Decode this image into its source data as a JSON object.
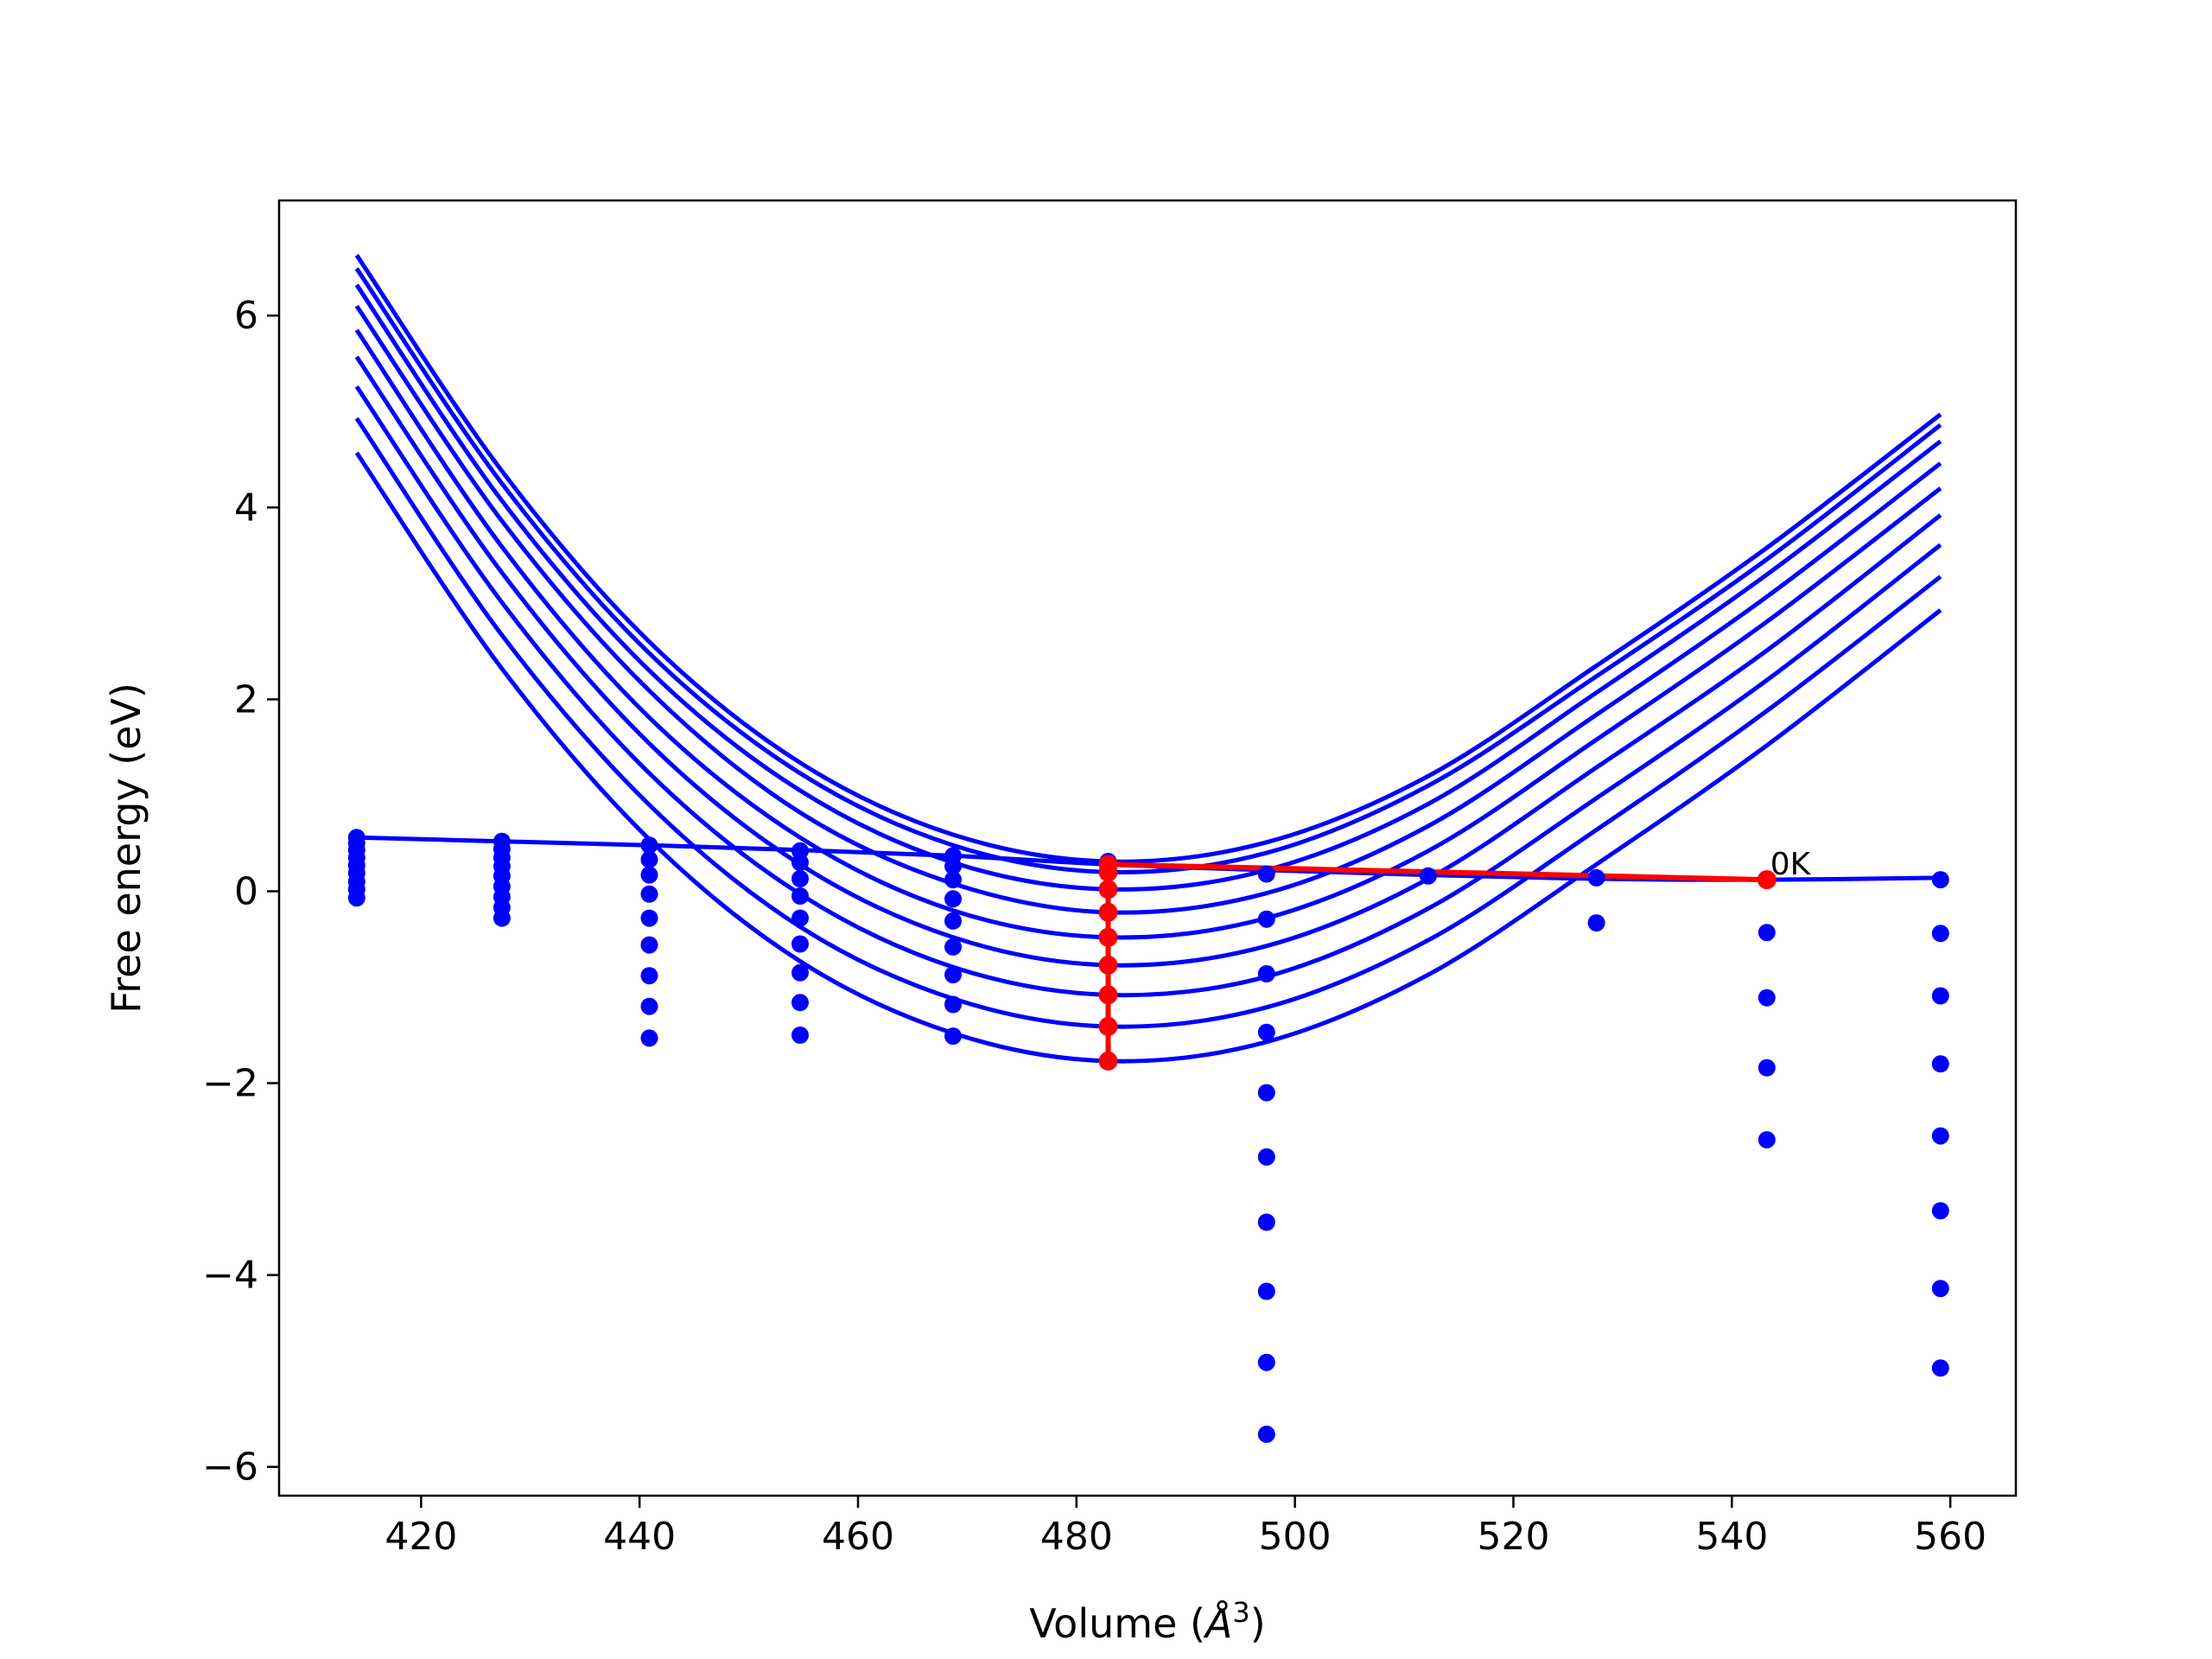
{
  "chart_data": {
    "type": "scatter",
    "xlabel": "Volume (",
    "xlabel_symbol": "Å",
    "xlabel_exponent": "3",
    "xlabel_close": ")",
    "ylabel": "Free energy (eV)",
    "xlim": [
      407,
      566
    ],
    "ylim": [
      -6.3,
      7.2
    ],
    "xticks": [
      420,
      440,
      460,
      480,
      500,
      520,
      540,
      560
    ],
    "xtick_labels": [
      "420",
      "440",
      "460",
      "480",
      "500",
      "520",
      "540",
      "560"
    ],
    "yticks": [
      -6,
      -4,
      -2,
      0,
      2,
      4,
      6
    ],
    "ytick_labels": [
      "−6",
      "−4",
      "−2",
      "0",
      "2",
      "4",
      "6"
    ],
    "grid": false,
    "annotation": {
      "text": "0K",
      "x": 543.2,
      "y": 0.12
    },
    "colors": {
      "curves": "#0000ff",
      "points": "#0000ff",
      "minimum_path": "#ff0000",
      "axes": "#000000"
    },
    "volumes": [
      414.1,
      427.4,
      440.9,
      454.7,
      468.7,
      482.9,
      497.4,
      512.2,
      527.6,
      543.2,
      559.1
    ],
    "point_columns": [
      {
        "x": 414.1,
        "y": [
          0.56,
          0.5,
          0.43,
          0.35,
          0.27,
          0.19,
          0.1,
          0.02,
          -0.07
        ]
      },
      {
        "x": 427.4,
        "y": [
          0.52,
          0.44,
          0.35,
          0.26,
          0.16,
          0.05,
          -0.06,
          -0.17,
          -0.28
        ]
      },
      {
        "x": 440.9,
        "y": [
          0.48,
          0.33,
          0.17,
          -0.03,
          -0.28,
          -0.56,
          -0.88,
          -1.2,
          -1.53
        ]
      },
      {
        "x": 454.7,
        "y": [
          0.42,
          0.3,
          0.13,
          -0.05,
          -0.28,
          -0.55,
          -0.85,
          -1.16,
          -1.5
        ]
      },
      {
        "x": 468.7,
        "y": [
          0.37,
          0.26,
          0.12,
          -0.08,
          -0.31,
          -0.58,
          -0.87,
          -1.18,
          -1.51
        ]
      },
      {
        "x": 482.9,
        "y": [
          0.31,
          0.21,
          0.03,
          -0.21,
          -0.48,
          -0.76,
          -1.07,
          -1.4,
          -1.76
        ]
      },
      {
        "x": 497.4,
        "y": [
          0.18,
          -0.29,
          -0.86,
          -1.47,
          -2.1,
          -2.77,
          -3.45,
          -4.17,
          -4.91,
          -5.66
        ]
      },
      {
        "x": 512.2,
        "y": [
          0.16
        ]
      },
      {
        "x": 527.6,
        "y": [
          0.14,
          -0.33
        ]
      },
      {
        "x": 543.2,
        "y": [
          0.12,
          -0.43,
          -1.11,
          -1.84,
          -2.59
        ]
      },
      {
        "x": 559.1,
        "y": [
          0.12,
          -0.44,
          -1.09,
          -1.8,
          -2.55,
          -3.33,
          -4.14,
          -4.97
        ]
      }
    ],
    "series": [
      {
        "x": [
          414.1,
          427.4,
          440.9,
          454.7,
          468.7,
          482.9,
          497.4,
          512.2,
          527.6,
          543.2,
          559.1
        ],
        "y": [
          0.56,
          0.52,
          0.48,
          0.43,
          0.37,
          0.28,
          0.22,
          0.17,
          0.13,
          0.12,
          0.14
        ]
      },
      {
        "x": [
          414.1,
          427.4,
          440.9,
          454.7,
          468.7,
          482.9,
          497.4,
          512.2,
          527.6,
          543.2,
          559.1
        ],
        "y": [
          6.63,
          4.38,
          2.6,
          1.34,
          0.59,
          0.31,
          0.51,
          1.2,
          2.35,
          3.58,
          4.97
        ]
      },
      {
        "x": [
          414.1,
          427.4,
          440.9,
          454.7,
          468.7,
          482.9,
          497.4,
          512.2,
          527.6,
          543.2,
          559.1
        ],
        "y": [
          6.49,
          4.25,
          2.48,
          1.23,
          0.48,
          0.2,
          0.4,
          1.1,
          2.24,
          3.46,
          4.86
        ]
      },
      {
        "x": [
          414.1,
          427.4,
          440.9,
          454.7,
          468.7,
          482.9,
          497.4,
          512.2,
          527.6,
          543.2,
          559.1
        ],
        "y": [
          6.32,
          4.07,
          2.3,
          1.05,
          0.3,
          0.02,
          0.22,
          0.91,
          2.07,
          3.3,
          4.69
        ]
      },
      {
        "x": [
          414.1,
          427.4,
          440.9,
          454.7,
          468.7,
          482.9,
          497.4,
          512.2,
          527.6,
          543.2,
          559.1
        ],
        "y": [
          6.1,
          3.86,
          2.09,
          0.82,
          0.08,
          -0.22,
          -0.02,
          0.68,
          1.84,
          3.07,
          4.46
        ]
      },
      {
        "x": [
          414.1,
          427.4,
          440.9,
          454.7,
          468.7,
          482.9,
          497.4,
          512.2,
          527.6,
          543.2,
          559.1
        ],
        "y": [
          5.85,
          3.59,
          1.81,
          0.56,
          -0.2,
          -0.48,
          -0.28,
          0.42,
          1.58,
          2.81,
          4.2
        ]
      },
      {
        "x": [
          414.1,
          427.4,
          440.9,
          454.7,
          468.7,
          482.9,
          497.4,
          512.2,
          527.6,
          543.2,
          559.1
        ],
        "y": [
          5.57,
          3.32,
          1.54,
          0.28,
          -0.48,
          -0.77,
          -0.57,
          0.13,
          1.29,
          2.51,
          3.92
        ]
      },
      {
        "x": [
          414.1,
          427.4,
          440.9,
          454.7,
          468.7,
          482.9,
          497.4,
          512.2,
          527.6,
          543.2,
          559.1
        ],
        "y": [
          5.26,
          3.01,
          1.23,
          -0.03,
          -0.79,
          -1.08,
          -0.89,
          -0.18,
          0.97,
          2.2,
          3.61
        ]
      },
      {
        "x": [
          414.1,
          427.4,
          440.9,
          454.7,
          468.7,
          482.9,
          497.4,
          512.2,
          527.6,
          543.2,
          559.1
        ],
        "y": [
          4.93,
          2.67,
          0.9,
          -0.37,
          -1.12,
          -1.41,
          -1.21,
          -0.51,
          0.64,
          1.88,
          3.28
        ]
      },
      {
        "x": [
          414.1,
          427.4,
          440.9,
          454.7,
          468.7,
          482.9,
          497.4,
          512.2,
          527.6,
          543.2,
          559.1
        ],
        "y": [
          4.57,
          2.32,
          0.54,
          -0.73,
          -1.48,
          -1.77,
          -1.57,
          -0.87,
          0.28,
          1.52,
          2.93
        ]
      }
    ],
    "minimum_path": {
      "x": [
        543.2,
        482.9,
        482.9,
        482.9,
        482.9,
        482.9,
        482.9,
        482.9,
        482.9,
        482.9
      ],
      "y": [
        0.12,
        0.28,
        0.2,
        0.02,
        -0.22,
        -0.48,
        -0.77,
        -1.08,
        -1.41,
        -1.77
      ]
    }
  }
}
